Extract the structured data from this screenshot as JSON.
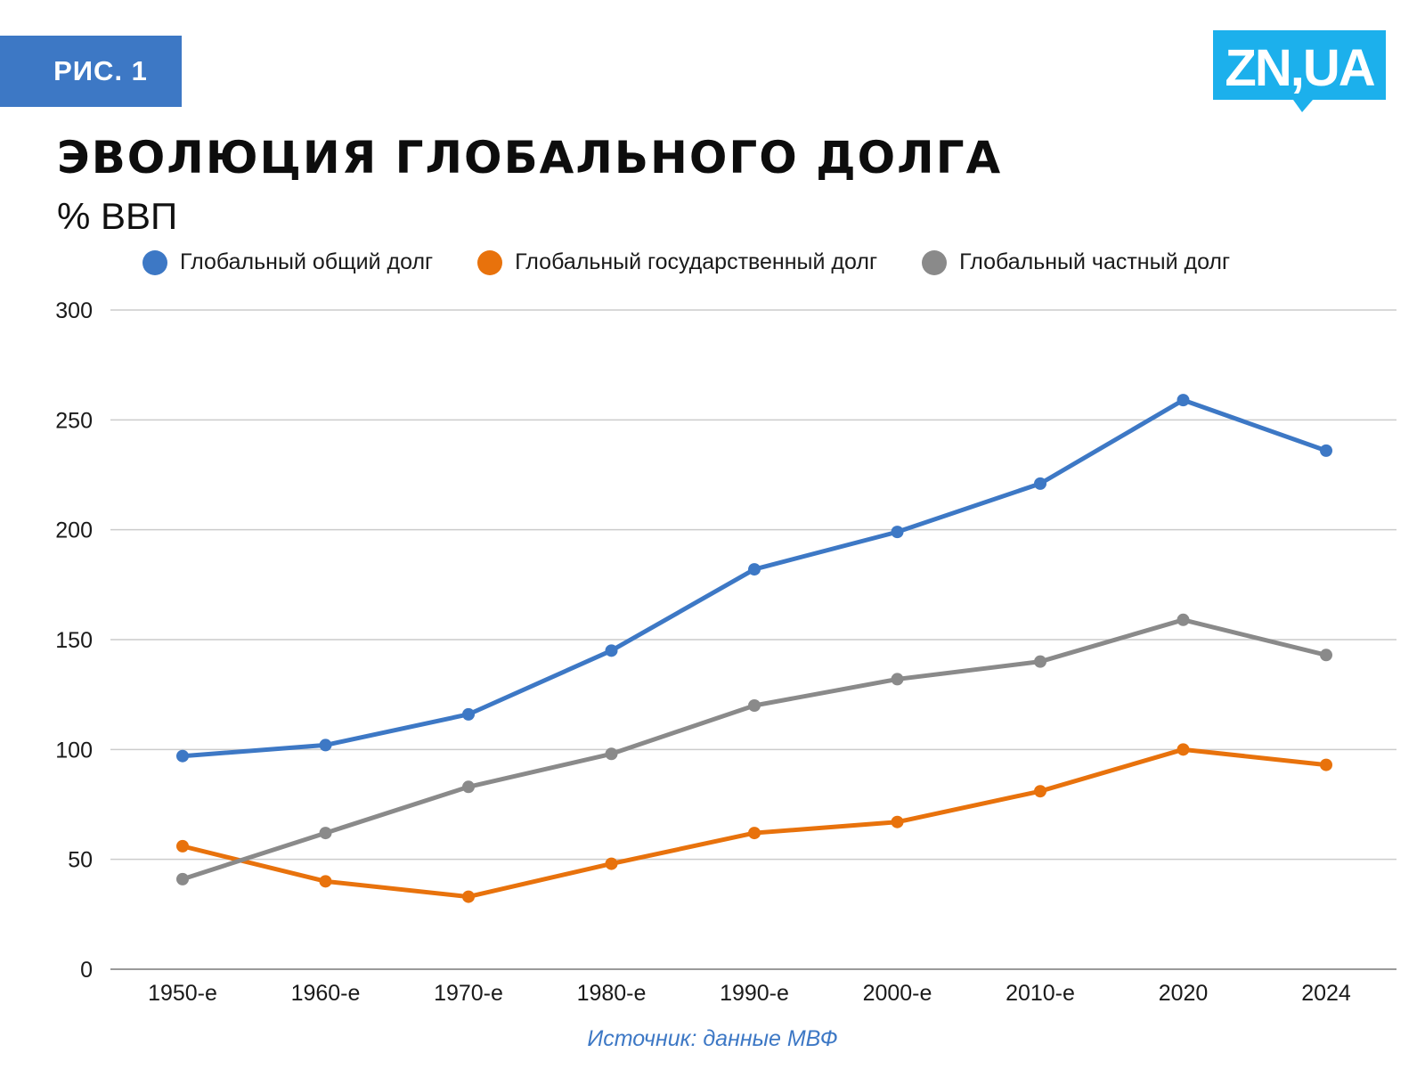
{
  "badge": {
    "label": "РИС. 1"
  },
  "logo": {
    "text": "ZN,UA",
    "color": "#1cb0ec"
  },
  "title": "ЭВОЛЮЦИЯ ГЛОБАЛЬНОГО ДОЛГА",
  "subtitle": "% ВВП",
  "source": "Источник: данные МВФ",
  "chart_data": {
    "type": "line",
    "title": "ЭВОЛЮЦИЯ ГЛОБАЛЬНОГО ДОЛГА",
    "subtitle": "% ВВП",
    "xlabel": "",
    "ylabel": "",
    "categories": [
      "1950-е",
      "1960-е",
      "1970-е",
      "1980-е",
      "1990-е",
      "2000-е",
      "2010-е",
      "2020",
      "2024"
    ],
    "ylim": [
      0,
      300
    ],
    "yticks": [
      0,
      50,
      100,
      150,
      200,
      250,
      300
    ],
    "grid": true,
    "legend_position": "top",
    "series": [
      {
        "name": "Глобальный общий долг",
        "color": "#3d78c5",
        "values": [
          97,
          102,
          116,
          145,
          182,
          199,
          221,
          259,
          236
        ]
      },
      {
        "name": "Глобальный государственный долг",
        "color": "#e8720c",
        "values": [
          56,
          40,
          33,
          48,
          62,
          67,
          81,
          100,
          93
        ]
      },
      {
        "name": "Глобальный частный долг",
        "color": "#8a8a8a",
        "values": [
          41,
          62,
          83,
          98,
          120,
          132,
          140,
          159,
          143
        ]
      }
    ]
  }
}
